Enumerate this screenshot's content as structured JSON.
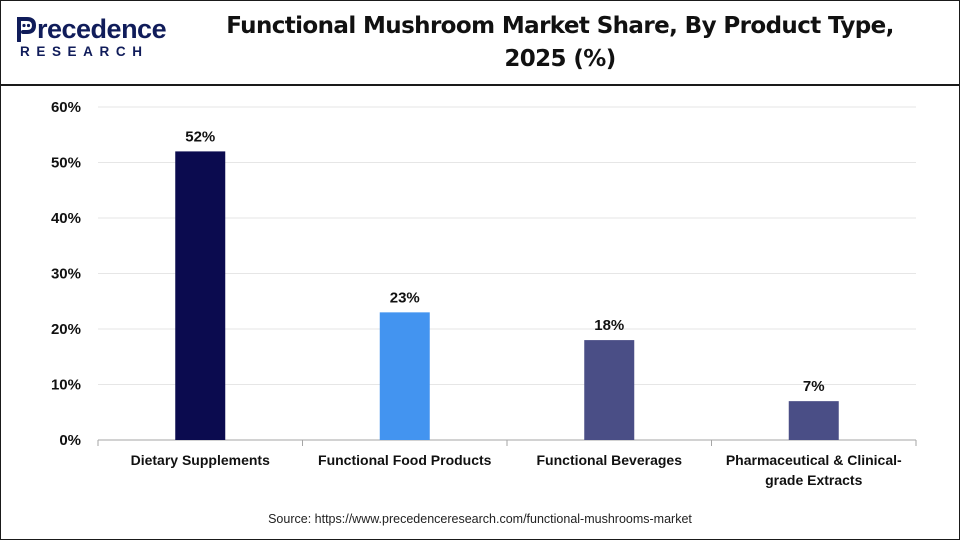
{
  "header": {
    "logo_top": "recedence",
    "logo_bottom": "RESEARCH",
    "title_line1": "Functional Mushroom Market Share, By Product Type,",
    "title_line2": "2025 (%)"
  },
  "chart_data": {
    "type": "bar",
    "title": "Functional Mushroom Market Share, By Product Type, 2025 (%)",
    "categories": [
      "Dietary Supplements",
      "Functional Food Products",
      "Functional Beverages",
      "Pharmaceutical & Clinical-grade Extracts"
    ],
    "category_lines": [
      [
        "Dietary Supplements"
      ],
      [
        "Functional Food Products"
      ],
      [
        "Functional Beverages"
      ],
      [
        "Pharmaceutical & Clinical-",
        "grade Extracts"
      ]
    ],
    "values": [
      52,
      23,
      18,
      7
    ],
    "data_labels": [
      "52%",
      "23%",
      "18%",
      "7%"
    ],
    "colors": [
      "#0b0b4f",
      "#4394f0",
      "#4a4e86",
      "#4a4e86"
    ],
    "ylim": [
      0,
      60
    ],
    "yticks": [
      0,
      10,
      20,
      30,
      40,
      50,
      60
    ],
    "ytick_labels": [
      "0%",
      "10%",
      "20%",
      "30%",
      "40%",
      "50%",
      "60%"
    ],
    "xlabel": "",
    "ylabel": "",
    "grid": true
  },
  "source": "Source: https://www.precedenceresearch.com/functional-mushrooms-market",
  "colors": {
    "brand": "#101c5a",
    "grid": "#e6e6e6",
    "axis": "#a6a6a6"
  }
}
